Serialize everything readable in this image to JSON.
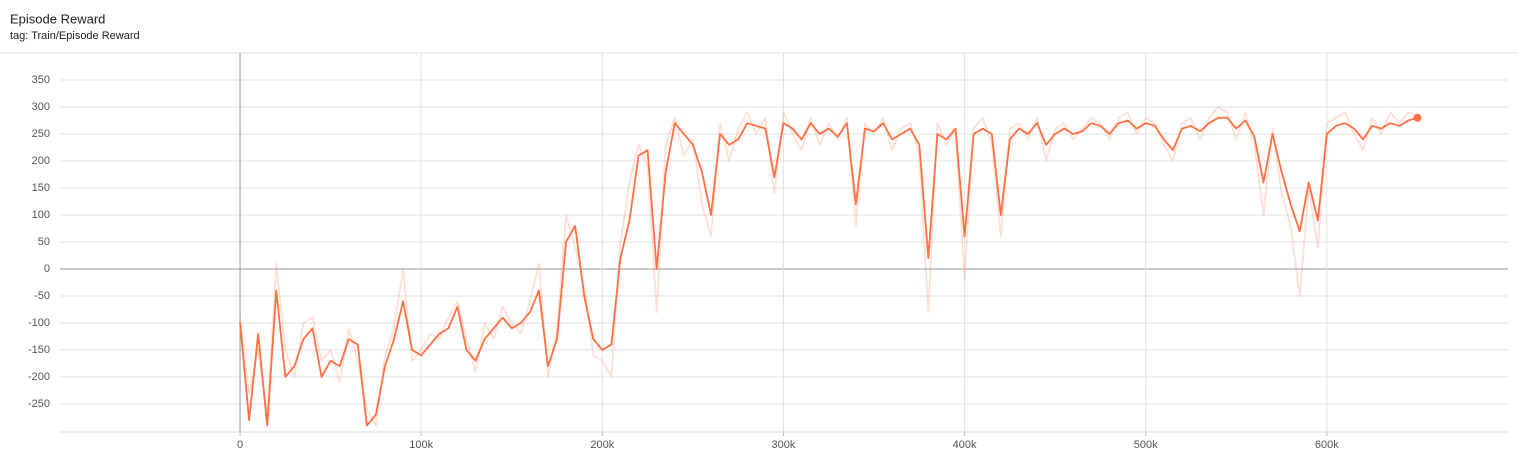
{
  "chart_data": {
    "type": "line",
    "title": "Episode Reward",
    "subtitle": "tag: Train/Episode Reward",
    "x": [
      0,
      5000,
      10000,
      15000,
      20000,
      25000,
      30000,
      35000,
      40000,
      45000,
      50000,
      55000,
      60000,
      65000,
      70000,
      75000,
      80000,
      85000,
      90000,
      95000,
      100000,
      105000,
      110000,
      115000,
      120000,
      125000,
      130000,
      135000,
      140000,
      145000,
      150000,
      155000,
      160000,
      165000,
      170000,
      175000,
      180000,
      185000,
      190000,
      195000,
      200000,
      205000,
      210000,
      215000,
      220000,
      225000,
      230000,
      235000,
      240000,
      245000,
      250000,
      255000,
      260000,
      265000,
      270000,
      275000,
      280000,
      285000,
      290000,
      295000,
      300000,
      305000,
      310000,
      315000,
      320000,
      325000,
      330000,
      335000,
      340000,
      345000,
      350000,
      355000,
      360000,
      365000,
      370000,
      375000,
      380000,
      385000,
      390000,
      395000,
      400000,
      405000,
      410000,
      415000,
      420000,
      425000,
      430000,
      435000,
      440000,
      445000,
      450000,
      455000,
      460000,
      465000,
      470000,
      475000,
      480000,
      485000,
      490000,
      495000,
      500000,
      505000,
      510000,
      515000,
      520000,
      525000,
      530000,
      535000,
      540000,
      545000,
      550000,
      555000,
      560000,
      565000,
      570000,
      575000,
      580000,
      585000,
      590000,
      595000,
      600000,
      605000,
      610000,
      615000,
      620000,
      625000,
      630000,
      635000,
      640000,
      645000,
      650000
    ],
    "series": [
      {
        "color": "#ff7043",
        "opacity": 0.22,
        "values": [
          -90,
          -230,
          -150,
          -270,
          10,
          -150,
          -200,
          -100,
          -90,
          -170,
          -150,
          -210,
          -110,
          -170,
          -260,
          -290,
          -160,
          -110,
          0,
          -170,
          -150,
          -120,
          -130,
          -90,
          -60,
          -130,
          -190,
          -100,
          -130,
          -70,
          -100,
          -120,
          -60,
          10,
          -200,
          -110,
          100,
          40,
          -30,
          -160,
          -170,
          -200,
          50,
          160,
          230,
          190,
          -80,
          230,
          280,
          210,
          240,
          120,
          60,
          270,
          200,
          260,
          290,
          250,
          280,
          140,
          290,
          250,
          220,
          280,
          230,
          270,
          240,
          280,
          80,
          270,
          250,
          280,
          220,
          260,
          270,
          210,
          -80,
          270,
          230,
          260,
          -20,
          260,
          280,
          230,
          60,
          260,
          270,
          240,
          280,
          200,
          260,
          270,
          240,
          260,
          280,
          270,
          240,
          280,
          290,
          250,
          280,
          270,
          230,
          200,
          270,
          280,
          240,
          280,
          300,
          290,
          240,
          290,
          230,
          100,
          260,
          140,
          80,
          -50,
          150,
          40,
          270,
          280,
          290,
          250,
          220,
          280,
          250,
          290,
          270,
          290,
          282
        ]
      },
      {
        "color": "#ff7043",
        "opacity": 1,
        "end_marker": true,
        "values": [
          -100,
          -280,
          -120,
          -290,
          -40,
          -200,
          -180,
          -130,
          -110,
          -200,
          -170,
          -180,
          -130,
          -140,
          -290,
          -270,
          -180,
          -130,
          -60,
          -150,
          -160,
          -140,
          -120,
          -110,
          -70,
          -150,
          -170,
          -130,
          -110,
          -90,
          -110,
          -100,
          -80,
          -40,
          -180,
          -130,
          50,
          80,
          -50,
          -130,
          -150,
          -140,
          20,
          90,
          210,
          220,
          0,
          180,
          270,
          250,
          230,
          180,
          100,
          250,
          230,
          240,
          270,
          265,
          260,
          170,
          270,
          260,
          240,
          270,
          250,
          260,
          245,
          270,
          120,
          260,
          255,
          270,
          240,
          250,
          260,
          230,
          20,
          250,
          240,
          260,
          60,
          250,
          260,
          250,
          100,
          240,
          260,
          250,
          270,
          230,
          250,
          260,
          250,
          255,
          270,
          265,
          250,
          270,
          275,
          260,
          270,
          265,
          240,
          220,
          260,
          265,
          255,
          270,
          280,
          280,
          260,
          275,
          245,
          160,
          250,
          180,
          120,
          70,
          160,
          90,
          250,
          265,
          270,
          260,
          240,
          265,
          260,
          270,
          265,
          275,
          280
        ]
      }
    ],
    "xlim": [
      -99400,
      700000
    ],
    "ylim": [
      -302,
      400
    ],
    "xticks": [
      {
        "value": 0,
        "label": "0"
      },
      {
        "value": 100000,
        "label": "100k"
      },
      {
        "value": 200000,
        "label": "200k"
      },
      {
        "value": 300000,
        "label": "300k"
      },
      {
        "value": 400000,
        "label": "400k"
      },
      {
        "value": 500000,
        "label": "500k"
      },
      {
        "value": 600000,
        "label": "600k"
      }
    ],
    "yticks": [
      -250,
      -200,
      -150,
      -100,
      -50,
      0,
      50,
      100,
      150,
      200,
      250,
      300,
      350
    ],
    "grid": true
  }
}
